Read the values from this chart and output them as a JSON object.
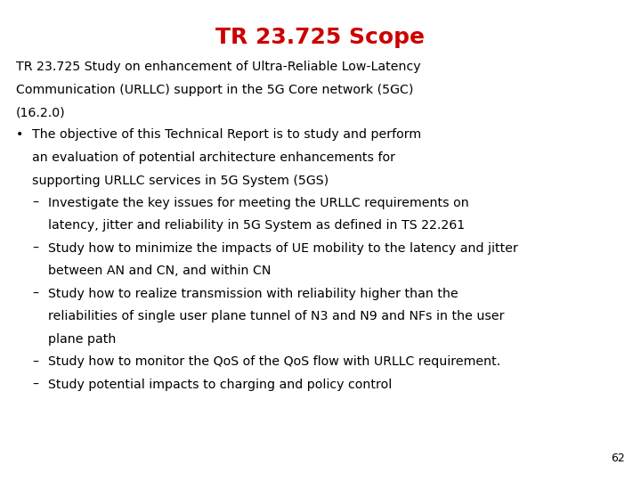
{
  "title": "TR 23.725 Scope",
  "title_color": "#cc0000",
  "title_fontsize": 18,
  "background_color": "#ffffff",
  "text_color": "#000000",
  "body_fontsize": 10.2,
  "page_number": "62",
  "lines": [
    {
      "type": "para",
      "text": "TR 23.725 Study on enhancement of Ultra-Reliable Low-Latency"
    },
    {
      "type": "para",
      "text": "Communication (URLLC) support in the 5G Core network (5GC)"
    },
    {
      "type": "para",
      "text": "(16.2.0)"
    },
    {
      "type": "bullet",
      "text": "The objective of this Technical Report is to study and perform"
    },
    {
      "type": "bullet_cont",
      "text": "an evaluation of potential architecture enhancements for"
    },
    {
      "type": "bullet_cont",
      "text": "supporting URLLC services in 5G System (5GS)"
    },
    {
      "type": "dash",
      "text": "Investigate the key issues for meeting the URLLC requirements on"
    },
    {
      "type": "dash_cont",
      "text": "latency, jitter and reliability in 5G System as defined in TS 22.261"
    },
    {
      "type": "dash",
      "text": "Study how to minimize the impacts of UE mobility to the latency and jitter"
    },
    {
      "type": "dash_cont",
      "text": "between AN and CN, and within CN"
    },
    {
      "type": "dash",
      "text": "Study how to realize transmission with reliability higher than the"
    },
    {
      "type": "dash_cont",
      "text": "reliabilities of single user plane tunnel of N3 and N9 and NFs in the user"
    },
    {
      "type": "dash_cont",
      "text": "plane path"
    },
    {
      "type": "dash",
      "text": "Study how to monitor the QoS of the QoS flow with URLLC requirement."
    },
    {
      "type": "dash",
      "text": "Study potential impacts to charging and policy control"
    }
  ]
}
